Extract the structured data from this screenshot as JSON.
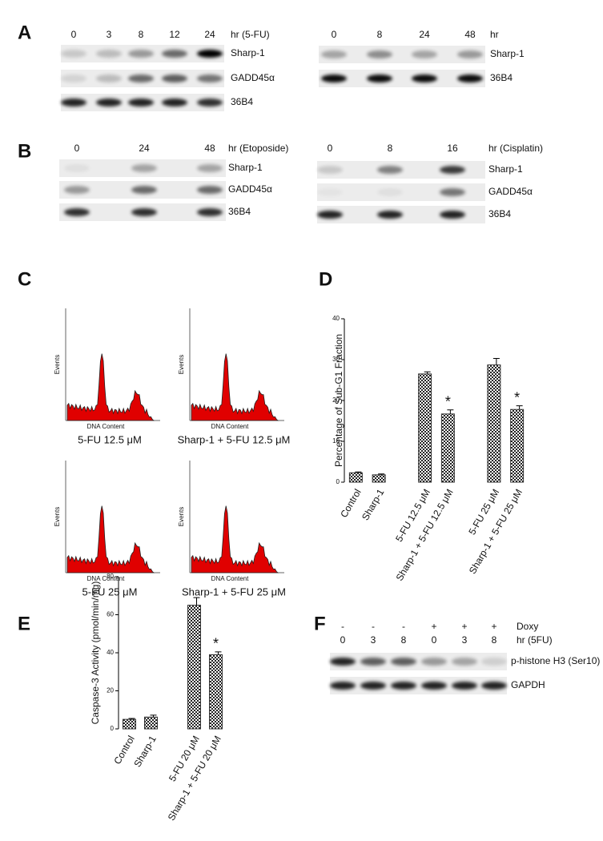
{
  "panel_A": {
    "label": "A",
    "left": {
      "lanes": [
        "0",
        "3",
        "8",
        "12",
        "24"
      ],
      "unit": "hr (5-FU)",
      "rows": [
        "Sharp-1",
        "GADD45α",
        "36B4"
      ]
    },
    "right": {
      "lanes": [
        "0",
        "8",
        "24",
        "48"
      ],
      "unit": "hr",
      "rows": [
        "Sharp-1",
        "36B4"
      ]
    }
  },
  "panel_B": {
    "label": "B",
    "left": {
      "lanes": [
        "0",
        "24",
        "48"
      ],
      "unit": "hr (Etoposide)",
      "rows": [
        "Sharp-1",
        "GADD45α",
        "36B4"
      ]
    },
    "right": {
      "lanes": [
        "0",
        "8",
        "16"
      ],
      "unit": "hr (Cisplatin)",
      "rows": [
        "Sharp-1",
        "GADD45α",
        "36B4"
      ]
    }
  },
  "panel_C": {
    "label": "C",
    "plots": [
      {
        "y_label": "Events",
        "x_label": "DNA Content",
        "caption": "5-FU 12.5 μM"
      },
      {
        "y_label": "Events",
        "x_label": "DNA Content",
        "caption": "Sharp-1 + 5-FU 12.5 μM"
      },
      {
        "y_label": "Events",
        "x_label": "DNA Content",
        "caption": "5-FU 25 μM"
      },
      {
        "y_label": "Events",
        "x_label": "DNA Content",
        "caption": "Sharp-1 + 5-FU 25 μM"
      }
    ]
  },
  "panel_F": {
    "label": "F",
    "treatments": [
      "-",
      "-",
      "-",
      "+",
      "+",
      "+"
    ],
    "treatment_label": "Doxy",
    "lanes": [
      "0",
      "3",
      "8",
      "0",
      "3",
      "8"
    ],
    "unit": "hr (5FU)",
    "rows": [
      "p-histone H3 (Ser10)",
      "GAPDH"
    ]
  },
  "chart_data": [
    {
      "type": "bar",
      "panel": "D",
      "y_label": "Percentage of Sub-G1 Fraction",
      "categories": [
        "Control",
        "Sharp-1",
        null,
        "5-FU 12.5 μM",
        "Sharp-1 + 5-FU 12.5 μM",
        null,
        "5-FU 25 μM",
        "Sharp-1 + 5-FU 25 μM"
      ],
      "values": [
        2.3,
        1.8,
        null,
        26.5,
        16.7,
        null,
        28.7,
        17.8
      ],
      "errors": [
        0.2,
        0.2,
        null,
        0.5,
        1.0,
        null,
        1.6,
        0.9
      ],
      "significance": [
        null,
        null,
        null,
        null,
        "*",
        null,
        null,
        "*"
      ],
      "ylim": [
        0,
        40
      ],
      "yticks": [
        0,
        10,
        20,
        30,
        40
      ],
      "color": "#333333"
    },
    {
      "type": "bar",
      "panel": "E",
      "y_label": "Caspase-3 Activity (pmol/min/mg)",
      "categories": [
        "Control",
        "Sharp-1",
        null,
        "5-FU 20 μM",
        "Sharp-1 + 5-FU 20 μM"
      ],
      "values": [
        5,
        6.2,
        null,
        65,
        39
      ],
      "errors": [
        0.5,
        1,
        null,
        4,
        1.5
      ],
      "significance": [
        null,
        null,
        null,
        null,
        "*"
      ],
      "ylim": [
        0,
        80
      ],
      "yticks": [
        0,
        20,
        40,
        60,
        80
      ],
      "color": "#333333"
    }
  ]
}
